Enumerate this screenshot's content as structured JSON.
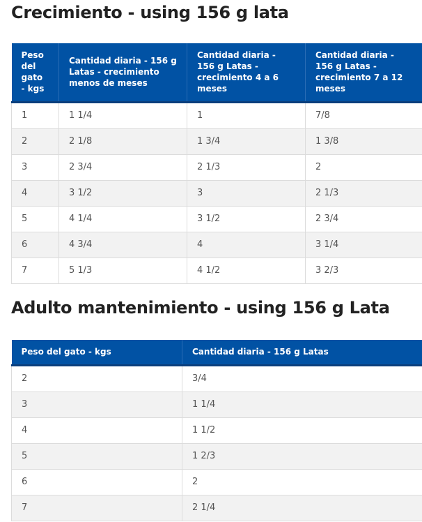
{
  "sections": [
    {
      "title": "Crecimiento - using 156 g lata",
      "table": {
        "header": [
          "Peso del gato - kgs",
          "Cantidad diaria - 156 g Latas - crecimiento menos de meses",
          "Cantidad diaria - 156 g Latas - crecimiento 4 a 6 meses",
          "Cantidad diaria - 156 g Latas - crecimiento 7 a 12 meses"
        ],
        "rows": [
          [
            "1",
            "1 1/4",
            "1",
            "7/8"
          ],
          [
            "2",
            "2 1/8",
            "1 3/4",
            "1 3/8"
          ],
          [
            "3",
            "2 3/4",
            "2 1/3",
            "2"
          ],
          [
            "4",
            "3 1/2",
            "3",
            "2 1/3"
          ],
          [
            "5",
            "4 1/4",
            "3 1/2",
            "2 3/4"
          ],
          [
            "6",
            "4 3/4",
            "4",
            "3 1/4"
          ],
          [
            "7",
            "5 1/3",
            "4 1/2",
            "3 2/3"
          ]
        ]
      }
    },
    {
      "title": "Adulto mantenimiento - using 156 g Lata",
      "table": {
        "header": [
          "Peso del gato - kgs",
          "Cantidad diaria - 156 g Latas"
        ],
        "rows": [
          [
            "2",
            "3/4"
          ],
          [
            "3",
            "1 1/4"
          ],
          [
            "4",
            "1 1/2"
          ],
          [
            "5",
            "1 2/3"
          ],
          [
            "6",
            "2"
          ],
          [
            "7",
            "2 1/4"
          ]
        ]
      }
    }
  ]
}
